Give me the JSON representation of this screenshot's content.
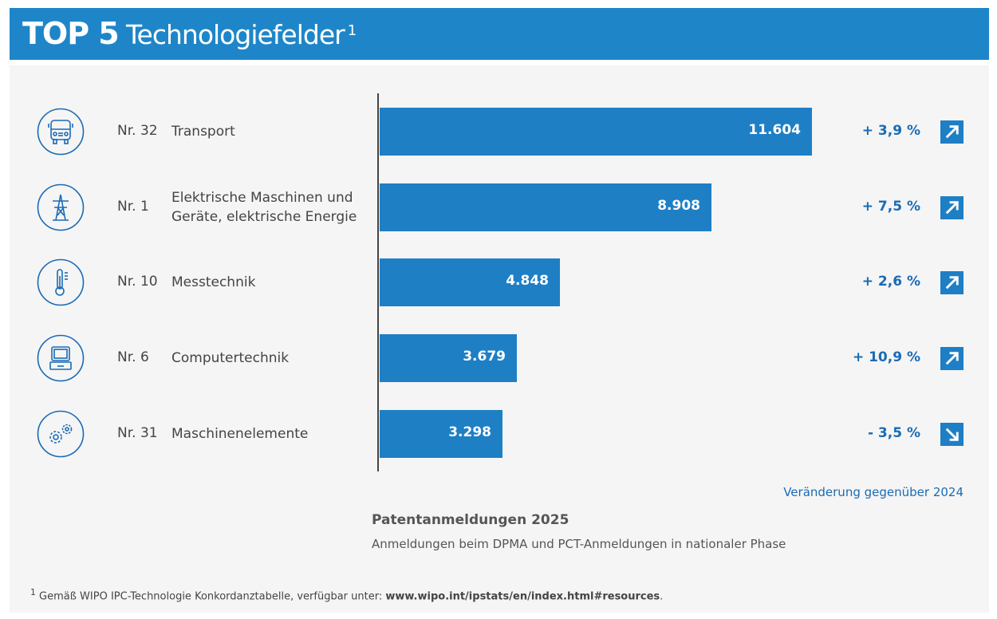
{
  "header": {
    "top": "TOP 5",
    "title": "Technologiefelder",
    "footnote_mark": "1"
  },
  "colors": {
    "header": "#1e86c8",
    "bar": "#1e7fc5",
    "text_accent": "#1a6bb5",
    "panel": "#f5f5f5"
  },
  "chart_data": {
    "type": "bar",
    "orientation": "horizontal",
    "title": "Patentanmeldungen 2025",
    "subtitle": "Anmeldungen beim DPMA und PCT-Anmeldungen in nationaler Phase",
    "change_label": "Veränderung gegenüber 2024",
    "categories": [
      {
        "rank": "Nr. 32",
        "label": "Transport",
        "icon": "bus-icon"
      },
      {
        "rank": "Nr. 1",
        "label": "Elektrische Maschinen und Geräte, elektrische Energie",
        "icon": "power-pylon-icon"
      },
      {
        "rank": "Nr. 10",
        "label": "Messtechnik",
        "icon": "thermometer-icon"
      },
      {
        "rank": "Nr. 6",
        "label": "Computertechnik",
        "icon": "computer-icon"
      },
      {
        "rank": "Nr. 31",
        "label": "Maschinenelemente",
        "icon": "gears-icon"
      }
    ],
    "values": [
      11604,
      8908,
      4848,
      3679,
      3298
    ],
    "value_labels": [
      "11.604",
      "8.908",
      "4.848",
      "3.679",
      "3.298"
    ],
    "changes": [
      "+ 3,9 %",
      "+ 7,5 %",
      "+ 2,6 %",
      "+ 10,9 %",
      "- 3,5 %"
    ],
    "trend": [
      "up",
      "up",
      "up",
      "up",
      "down"
    ]
  },
  "footnote": {
    "mark": "1",
    "text": "Gemäß WIPO IPC-Technologie Konkordanztabelle, verfügbar unter: ",
    "link": "www.wipo.int/ipstats/en/index.html#resources",
    "end": "."
  }
}
